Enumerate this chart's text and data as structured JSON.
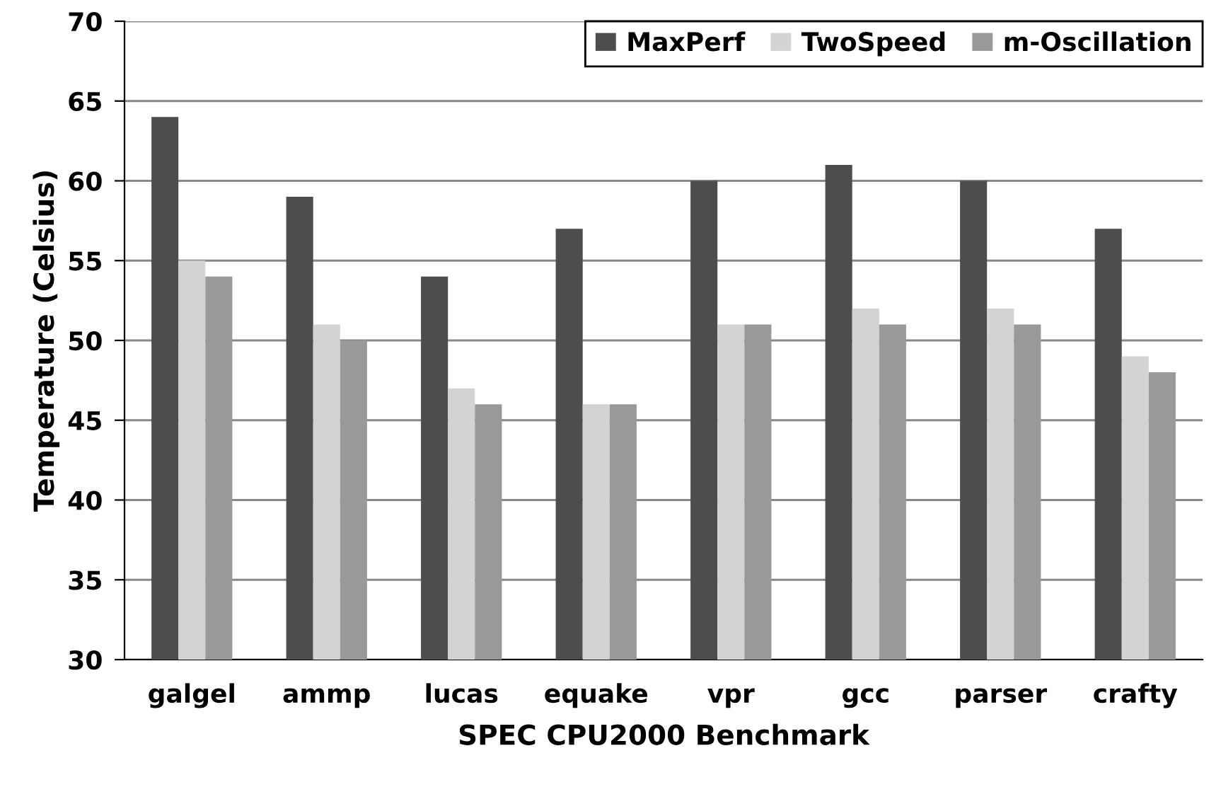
{
  "chart_data": {
    "type": "bar",
    "xlabel": "SPEC CPU2000 Benchmark",
    "ylabel": "Temperature (Celsius)",
    "categories": [
      "galgel",
      "ammp",
      "lucas",
      "equake",
      "vpr",
      "gcc",
      "parser",
      "crafty"
    ],
    "series": [
      {
        "name": "MaxPerf",
        "color": "#4d4d4d",
        "values": [
          64,
          59,
          54,
          57,
          60,
          61,
          60,
          57
        ]
      },
      {
        "name": "TwoSpeed",
        "color": "#d3d3d3",
        "values": [
          55,
          51,
          47,
          46,
          51,
          52,
          52,
          49
        ]
      },
      {
        "name": "m-Oscillation",
        "color": "#999999",
        "values": [
          54,
          50,
          46,
          46,
          51,
          51,
          51,
          48
        ]
      }
    ],
    "ylim": [
      30,
      70
    ],
    "yticks": [
      30,
      35,
      40,
      45,
      50,
      55,
      60,
      65,
      70
    ],
    "grid": "y",
    "legend": "top right"
  }
}
